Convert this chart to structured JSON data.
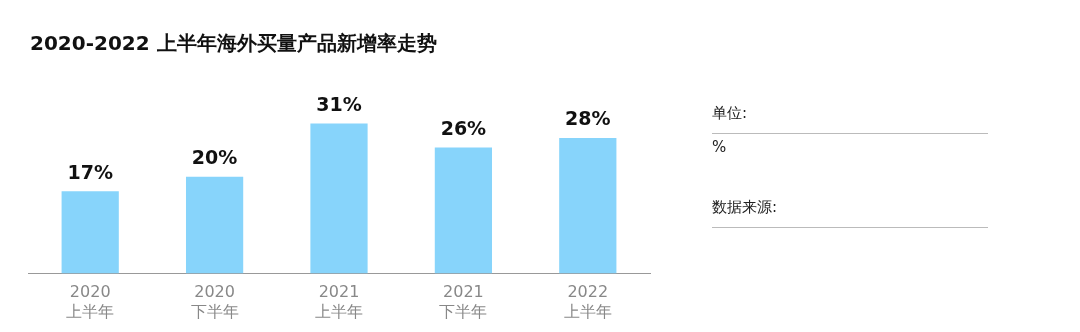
{
  "chart_data": {
    "type": "bar",
    "title": "2020-2022 上半年海外买量产品新增率走势",
    "categories": [
      "2020 上半年",
      "2020 下半年",
      "2021 上半年",
      "2021 下半年",
      "2022 上半年"
    ],
    "values": [
      17,
      20,
      31,
      26,
      28
    ],
    "color": "#87d4fb",
    "data_labels": true,
    "value_labels": [
      "17%",
      "20%",
      "31%",
      "26%",
      "28%"
    ],
    "annotations": [
      "单位:",
      "%",
      "数据来源:"
    ],
    "grid": false,
    "legend": false
  }
}
